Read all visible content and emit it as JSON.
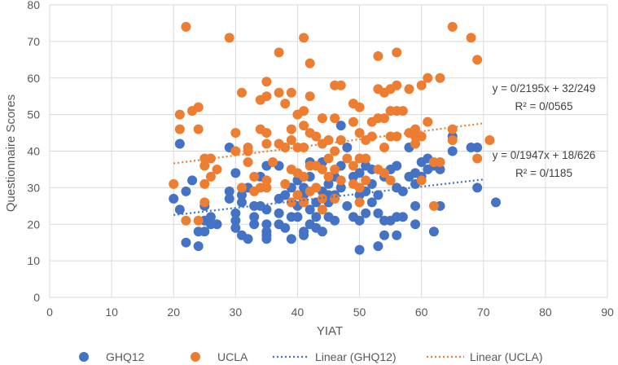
{
  "chart_data": {
    "type": "scatter",
    "xlabel": "YIAT",
    "ylabel": "Questionnaire Scores",
    "xlim": [
      0,
      90
    ],
    "ylim": [
      0,
      80
    ],
    "x_ticks": [
      0,
      10,
      20,
      30,
      40,
      50,
      60,
      70,
      80,
      90
    ],
    "y_ticks": [
      0,
      10,
      20,
      30,
      40,
      50,
      60,
      70,
      80
    ],
    "grid": true,
    "legend_position": "bottom",
    "series": [
      {
        "name": "GHQ12",
        "color": "#4472C4",
        "points": [
          [
            20,
            27
          ],
          [
            21,
            24
          ],
          [
            21,
            42
          ],
          [
            22,
            15
          ],
          [
            22,
            29
          ],
          [
            23,
            32
          ],
          [
            24,
            14
          ],
          [
            24,
            18
          ],
          [
            25,
            25
          ],
          [
            25,
            21
          ],
          [
            25,
            18
          ],
          [
            26,
            22
          ],
          [
            26,
            20
          ],
          [
            27,
            20
          ],
          [
            29,
            41
          ],
          [
            29,
            29
          ],
          [
            29,
            27
          ],
          [
            30,
            34
          ],
          [
            30,
            21
          ],
          [
            30,
            23
          ],
          [
            30,
            19
          ],
          [
            31,
            17
          ],
          [
            31,
            28
          ],
          [
            31,
            26
          ],
          [
            32,
            16
          ],
          [
            32,
            30
          ],
          [
            33,
            25
          ],
          [
            33,
            22
          ],
          [
            33,
            20
          ],
          [
            34,
            33
          ],
          [
            34,
            25
          ],
          [
            35,
            17
          ],
          [
            35,
            36
          ],
          [
            35,
            16
          ],
          [
            35,
            20
          ],
          [
            35,
            24
          ],
          [
            35,
            18
          ],
          [
            37,
            36
          ],
          [
            37,
            20
          ],
          [
            37,
            23
          ],
          [
            37,
            27
          ],
          [
            38,
            28
          ],
          [
            38,
            19
          ],
          [
            39,
            22
          ],
          [
            39,
            16
          ],
          [
            39,
            30
          ],
          [
            40,
            25
          ],
          [
            40,
            22
          ],
          [
            40,
            32
          ],
          [
            41,
            17
          ],
          [
            41,
            18
          ],
          [
            41,
            30
          ],
          [
            41,
            28
          ],
          [
            42,
            24
          ],
          [
            42,
            20
          ],
          [
            42,
            33
          ],
          [
            42,
            37
          ],
          [
            43,
            26
          ],
          [
            43,
            22
          ],
          [
            43,
            19
          ],
          [
            44,
            29
          ],
          [
            44,
            18
          ],
          [
            44,
            37
          ],
          [
            45,
            31
          ],
          [
            45,
            28
          ],
          [
            45,
            22
          ],
          [
            45,
            26
          ],
          [
            46,
            21
          ],
          [
            46,
            33
          ],
          [
            46,
            28
          ],
          [
            47,
            47
          ],
          [
            47,
            36
          ],
          [
            47,
            30
          ],
          [
            48,
            41
          ],
          [
            48,
            25
          ],
          [
            49,
            33
          ],
          [
            49,
            22
          ],
          [
            50,
            13
          ],
          [
            50,
            21
          ],
          [
            50,
            28
          ],
          [
            50,
            34
          ],
          [
            51,
            23
          ],
          [
            51,
            36
          ],
          [
            51,
            29
          ],
          [
            52,
            31
          ],
          [
            52,
            26
          ],
          [
            52,
            35
          ],
          [
            53,
            14
          ],
          [
            53,
            23
          ],
          [
            53,
            28
          ],
          [
            54,
            21
          ],
          [
            54,
            17
          ],
          [
            54,
            33
          ],
          [
            55,
            21
          ],
          [
            55,
            35
          ],
          [
            56,
            17
          ],
          [
            56,
            36
          ],
          [
            56,
            30
          ],
          [
            56,
            22
          ],
          [
            57,
            29
          ],
          [
            57,
            22
          ],
          [
            58,
            41
          ],
          [
            58,
            33
          ],
          [
            59,
            34
          ],
          [
            59,
            31
          ],
          [
            59,
            25
          ],
          [
            59,
            20
          ],
          [
            60,
            37
          ],
          [
            60,
            33
          ],
          [
            61,
            38
          ],
          [
            61,
            35
          ],
          [
            62,
            18
          ],
          [
            62,
            36
          ],
          [
            63,
            35
          ],
          [
            63,
            25
          ],
          [
            65,
            44
          ],
          [
            65,
            40
          ],
          [
            68,
            41
          ],
          [
            69,
            41
          ],
          [
            69,
            30
          ],
          [
            72,
            26
          ]
        ]
      },
      {
        "name": "UCLA",
        "color": "#ED7D31",
        "points": [
          [
            20,
            31
          ],
          [
            21,
            50
          ],
          [
            21,
            46
          ],
          [
            22,
            74
          ],
          [
            22,
            21
          ],
          [
            23,
            51
          ],
          [
            24,
            52
          ],
          [
            24,
            46
          ],
          [
            24,
            21
          ],
          [
            25,
            38
          ],
          [
            25,
            36
          ],
          [
            25,
            26
          ],
          [
            25,
            31
          ],
          [
            26,
            38
          ],
          [
            26,
            33
          ],
          [
            27,
            35
          ],
          [
            29,
            71
          ],
          [
            30,
            45
          ],
          [
            30,
            40
          ],
          [
            31,
            56
          ],
          [
            31,
            30
          ],
          [
            32,
            41
          ],
          [
            32,
            37
          ],
          [
            32,
            40
          ],
          [
            33,
            33
          ],
          [
            33,
            29
          ],
          [
            34,
            46
          ],
          [
            34,
            54
          ],
          [
            34,
            30
          ],
          [
            35,
            59
          ],
          [
            35,
            55
          ],
          [
            35,
            45
          ],
          [
            35,
            42
          ],
          [
            35,
            30
          ],
          [
            35,
            32
          ],
          [
            36,
            37
          ],
          [
            37,
            67
          ],
          [
            37,
            56
          ],
          [
            37,
            42
          ],
          [
            38,
            53
          ],
          [
            38,
            41
          ],
          [
            38,
            31
          ],
          [
            39,
            46
          ],
          [
            39,
            43
          ],
          [
            39,
            35
          ],
          [
            39,
            56
          ],
          [
            39,
            26
          ],
          [
            40,
            50
          ],
          [
            40,
            41
          ],
          [
            40,
            34
          ],
          [
            40,
            28
          ],
          [
            41,
            71
          ],
          [
            41,
            51
          ],
          [
            41,
            47
          ],
          [
            41,
            41
          ],
          [
            41,
            33
          ],
          [
            41,
            26
          ],
          [
            42,
            64
          ],
          [
            42,
            55
          ],
          [
            42,
            45
          ],
          [
            42,
            36
          ],
          [
            42,
            29
          ],
          [
            43,
            44
          ],
          [
            43,
            36
          ],
          [
            43,
            30
          ],
          [
            44,
            49
          ],
          [
            44,
            42
          ],
          [
            44,
            35
          ],
          [
            44,
            27
          ],
          [
            44,
            24
          ],
          [
            45,
            43
          ],
          [
            45,
            38
          ],
          [
            45,
            33
          ],
          [
            46,
            58
          ],
          [
            46,
            49
          ],
          [
            46,
            40
          ],
          [
            46,
            35
          ],
          [
            46,
            27
          ],
          [
            47,
            58
          ],
          [
            47,
            43
          ],
          [
            47,
            32
          ],
          [
            48,
            38
          ],
          [
            49,
            53
          ],
          [
            49,
            48
          ],
          [
            49,
            36
          ],
          [
            49,
            31
          ],
          [
            50,
            52
          ],
          [
            50,
            45
          ],
          [
            50,
            38
          ],
          [
            50,
            30
          ],
          [
            50,
            26
          ],
          [
            51,
            43
          ],
          [
            51,
            38
          ],
          [
            51,
            32
          ],
          [
            52,
            48
          ],
          [
            52,
            44
          ],
          [
            53,
            66
          ],
          [
            53,
            57
          ],
          [
            53,
            49
          ],
          [
            53,
            35
          ],
          [
            54,
            56
          ],
          [
            54,
            49
          ],
          [
            54,
            41
          ],
          [
            54,
            34
          ],
          [
            55,
            57
          ],
          [
            55,
            51
          ],
          [
            55,
            44
          ],
          [
            55,
            32
          ],
          [
            56,
            67
          ],
          [
            56,
            58
          ],
          [
            56,
            51
          ],
          [
            56,
            44
          ],
          [
            57,
            51
          ],
          [
            58,
            57
          ],
          [
            58,
            45
          ],
          [
            59,
            46
          ],
          [
            59,
            44
          ],
          [
            59,
            42
          ],
          [
            60,
            58
          ],
          [
            60,
            44
          ],
          [
            60,
            32
          ],
          [
            61,
            60
          ],
          [
            61,
            48
          ],
          [
            62,
            37
          ],
          [
            62,
            25
          ],
          [
            63,
            60
          ],
          [
            63,
            37
          ],
          [
            65,
            74
          ],
          [
            65,
            46
          ],
          [
            65,
            43
          ],
          [
            68,
            71
          ],
          [
            69,
            65
          ],
          [
            69,
            38
          ],
          [
            71,
            43
          ]
        ]
      }
    ],
    "trendlines": [
      {
        "name": "Linear (GHQ12)",
        "color": "#4472C4",
        "x_range": [
          20,
          70
        ],
        "slope": 0.1947,
        "intercept": 18.626,
        "equation_label": "y = 0/1947x + 18/626",
        "r2_label": "R² = 0/1185"
      },
      {
        "name": "Linear (UCLA)",
        "color": "#ED7D31",
        "x_range": [
          20,
          70
        ],
        "slope": 0.2195,
        "intercept": 32.249,
        "equation_label": "y = 0/2195x + 32/249",
        "r2_label": "R² = 0/0565"
      }
    ]
  }
}
